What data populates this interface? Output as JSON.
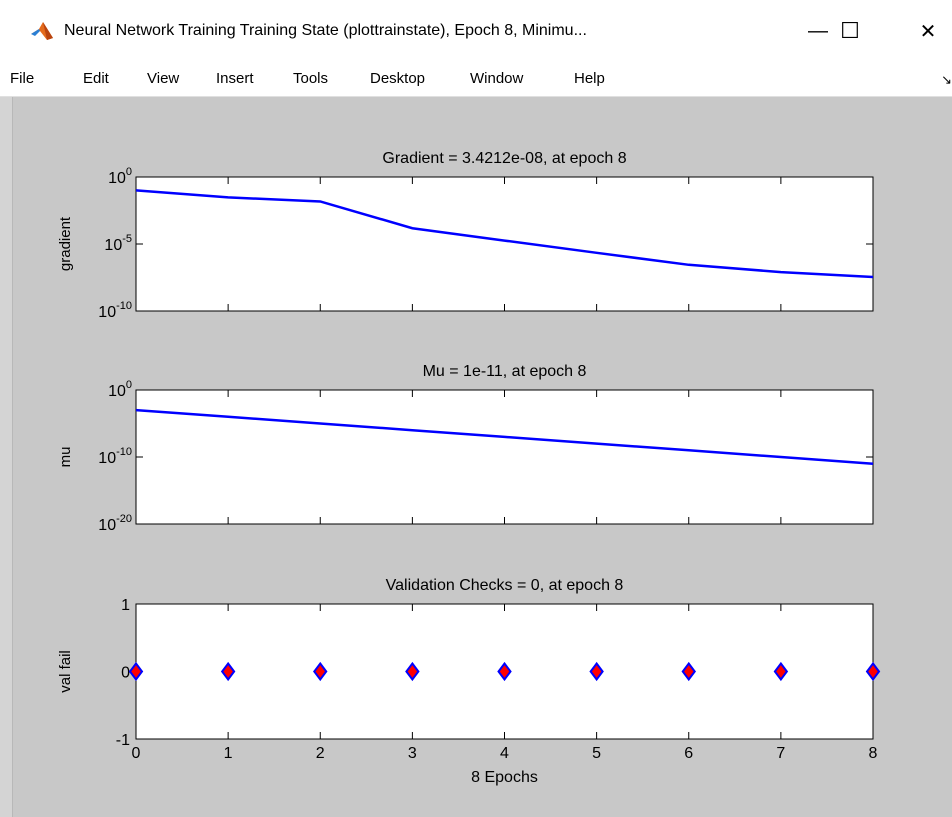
{
  "window": {
    "title": "Neural Network Training Training State (plottrainstate), Epoch 8, Minimu...",
    "controls": {
      "minimize": "—",
      "maximize": "☐",
      "close": "✕"
    }
  },
  "menu": [
    "File",
    "Edit",
    "View",
    "Insert",
    "Tools",
    "Desktop",
    "Window",
    "Help"
  ],
  "colors": {
    "line": "#0000ff",
    "marker_fill": "#ff0000",
    "marker_edge": "#0000ff",
    "figure_bg": "#c8c8c8",
    "axes_bg": "#ffffff"
  },
  "chart_data": [
    {
      "type": "line",
      "title": "Gradient = 3.4212e-08, at epoch 8",
      "ylabel": "gradient",
      "yscale": "log",
      "ylim": [
        1e-10,
        1
      ],
      "yticks": [
        {
          "value": 1e-10,
          "base": "10",
          "exp": "-10"
        },
        {
          "value": 1e-05,
          "base": "10",
          "exp": "-5"
        },
        {
          "value": 1,
          "base": "10",
          "exp": "0"
        }
      ],
      "xlim": [
        0,
        8
      ],
      "x": [
        0,
        1,
        2,
        3,
        4,
        5,
        6,
        7,
        8
      ],
      "values": [
        0.1,
        0.03,
        0.015,
        0.00015,
        1.8e-05,
        2.2e-06,
        2.8e-07,
        8e-08,
        3.4212e-08
      ]
    },
    {
      "type": "line",
      "title": "Mu = 1e-11, at epoch 8",
      "ylabel": "mu",
      "yscale": "log",
      "ylim": [
        1e-20,
        1
      ],
      "yticks": [
        {
          "value": 1e-20,
          "base": "10",
          "exp": "-20"
        },
        {
          "value": 1e-10,
          "base": "10",
          "exp": "-10"
        },
        {
          "value": 1,
          "base": "10",
          "exp": "0"
        }
      ],
      "xlim": [
        0,
        8
      ],
      "x": [
        0,
        1,
        2,
        3,
        4,
        5,
        6,
        7,
        8
      ],
      "values": [
        0.001,
        0.0001,
        1e-05,
        1e-06,
        1e-07,
        1e-08,
        1e-09,
        1e-10,
        1e-11
      ]
    },
    {
      "type": "scatter",
      "title": "Validation Checks = 0, at epoch 8",
      "ylabel": "val fail",
      "xlabel": "8 Epochs",
      "ylim": [
        -1,
        1
      ],
      "yticks": [
        -1,
        0,
        1
      ],
      "xlim": [
        0,
        8
      ],
      "xticks": [
        0,
        1,
        2,
        3,
        4,
        5,
        6,
        7,
        8
      ],
      "x": [
        0,
        1,
        2,
        3,
        4,
        5,
        6,
        7,
        8
      ],
      "values": [
        0,
        0,
        0,
        0,
        0,
        0,
        0,
        0,
        0
      ]
    }
  ]
}
